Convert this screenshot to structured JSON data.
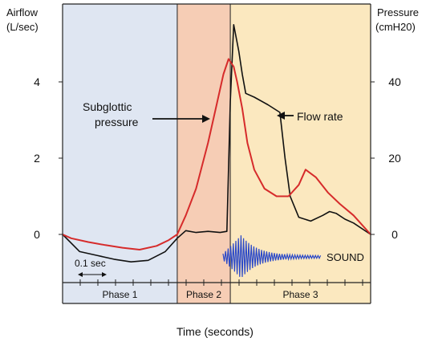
{
  "chart_data": {
    "type": "line",
    "title": "",
    "xlabel": "Time (seconds)",
    "ylabel_left": [
      "Airflow",
      "(L/sec)"
    ],
    "ylabel_right": [
      "Pressure",
      "(cmH20)"
    ],
    "y_left": {
      "ylim": [
        0,
        5.2
      ],
      "ticks": [
        "0",
        "2",
        "4"
      ]
    },
    "y_right": {
      "ylim": [
        0,
        52
      ],
      "ticks": [
        "0",
        "20",
        "40"
      ]
    },
    "x_range": [
      0,
      1.8
    ],
    "phases": [
      {
        "label": "Phase 1",
        "start": 0.0,
        "end": 0.67,
        "color": "#dfe6f2"
      },
      {
        "label": "Phase 2",
        "start": 0.67,
        "end": 0.98,
        "color": "#f6cdb5"
      },
      {
        "label": "Phase 3",
        "start": 0.98,
        "end": 1.8,
        "color": "#fbe8bf"
      }
    ],
    "series": [
      {
        "name": "Flow rate",
        "axis": "left",
        "color": "#111111",
        "x": [
          0.0,
          0.1,
          0.2,
          0.3,
          0.4,
          0.5,
          0.6,
          0.67,
          0.72,
          0.78,
          0.85,
          0.92,
          0.96,
          0.98,
          1.0,
          1.03,
          1.05,
          1.07,
          1.12,
          1.2,
          1.27,
          1.3,
          1.33,
          1.38,
          1.45,
          1.52,
          1.56,
          1.6,
          1.65,
          1.7,
          1.8
        ],
        "values": [
          0.0,
          -0.45,
          -0.55,
          -0.65,
          -0.72,
          -0.68,
          -0.45,
          -0.1,
          0.1,
          0.05,
          0.08,
          0.05,
          0.08,
          3.5,
          5.5,
          4.8,
          4.2,
          3.7,
          3.6,
          3.4,
          3.2,
          2.0,
          1.0,
          0.45,
          0.35,
          0.5,
          0.6,
          0.55,
          0.4,
          0.3,
          0.0
        ]
      },
      {
        "name": "Subglottic pressure",
        "axis": "right",
        "color": "#d62b2b",
        "x": [
          0.0,
          0.05,
          0.15,
          0.25,
          0.35,
          0.45,
          0.55,
          0.62,
          0.67,
          0.72,
          0.78,
          0.85,
          0.9,
          0.94,
          0.97,
          1.0,
          1.02,
          1.05,
          1.08,
          1.12,
          1.18,
          1.25,
          1.32,
          1.38,
          1.42,
          1.48,
          1.55,
          1.62,
          1.7,
          1.8
        ],
        "values": [
          0,
          -1,
          -2,
          -2.8,
          -3.5,
          -4,
          -3,
          -1.5,
          0,
          5,
          12,
          24,
          34,
          42,
          46,
          44,
          40,
          33,
          24,
          17,
          12,
          10,
          10,
          13,
          17,
          15,
          11,
          8,
          5,
          0
        ]
      }
    ],
    "annotations": [
      {
        "id": "subglottic",
        "text": [
          "Subglottic",
          "pressure"
        ]
      },
      {
        "id": "flow",
        "text": [
          "Flow rate"
        ]
      },
      {
        "id": "sound",
        "text": [
          "SOUND"
        ],
        "color": "#2a48c8"
      },
      {
        "id": "scale",
        "text": [
          "0.1 sec"
        ]
      }
    ]
  }
}
